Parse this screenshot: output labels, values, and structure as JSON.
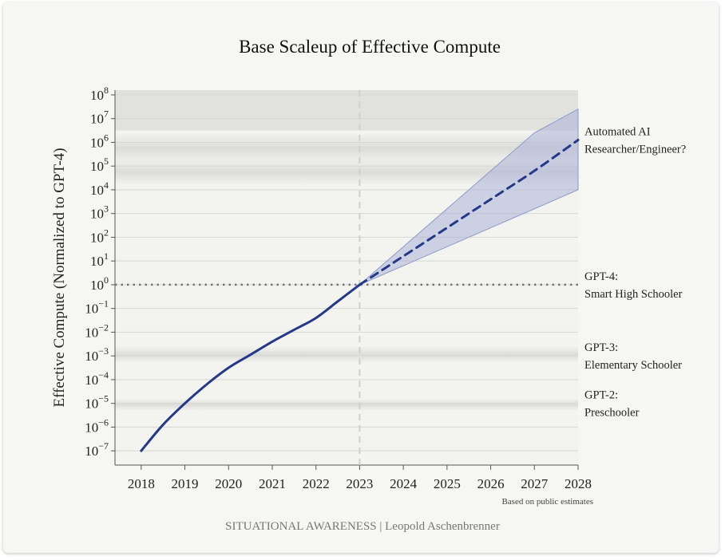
{
  "chart_data": {
    "type": "line",
    "title": "Base Scaleup of Effective Compute",
    "ylabel": "Effective Compute (Normalized to GPT-4)",
    "xlabel": "",
    "xlim": [
      2017.4,
      2028
    ],
    "ylim_log10": [
      -7.6,
      8.2
    ],
    "x_ticks": [
      2018,
      2019,
      2020,
      2021,
      2022,
      2023,
      2024,
      2025,
      2026,
      2027,
      2028
    ],
    "y_tick_exponents": [
      -7,
      -6,
      -5,
      -4,
      -3,
      -2,
      -1,
      0,
      1,
      2,
      3,
      4,
      5,
      6,
      7,
      8
    ],
    "series": [
      {
        "name": "historical",
        "style": "solid",
        "x": [
          2018,
          2018.5,
          2019,
          2019.5,
          2020,
          2020.5,
          2021,
          2021.5,
          2022,
          2022.5,
          2023
        ],
        "log10_y": [
          -7.0,
          -5.9,
          -5.0,
          -4.2,
          -3.5,
          -2.95,
          -2.4,
          -1.9,
          -1.4,
          -0.7,
          0.0
        ]
      },
      {
        "name": "projection",
        "style": "dashed",
        "x": [
          2023,
          2024,
          2025,
          2026,
          2027,
          2028
        ],
        "log10_y": [
          0.0,
          1.2,
          2.4,
          3.6,
          4.8,
          6.1
        ]
      }
    ],
    "band": {
      "x": [
        2023,
        2024,
        2025,
        2026,
        2027,
        2028
      ],
      "log10_low": [
        0.0,
        0.8,
        1.6,
        2.4,
        3.2,
        4.0
      ],
      "log10_high": [
        0.0,
        1.6,
        3.2,
        4.8,
        6.4,
        7.4
      ]
    },
    "vertical_marker_x": 2023,
    "horizontal_marker_log10_y": 0,
    "shaded_bands_log10": [
      [
        5.1,
        6.4
      ],
      [
        4.2,
        5.3
      ],
      [
        -3.3,
        -2.6
      ],
      [
        -5.3,
        -4.8
      ]
    ],
    "annotations": [
      {
        "lines": [
          "Automated AI",
          "Researcher/Engineer?"
        ],
        "log10_y": 6.1
      },
      {
        "lines": [
          "GPT-4:",
          "Smart High Schooler"
        ],
        "log10_y": 0
      },
      {
        "lines": [
          "GPT-3:",
          "Elementary Schooler"
        ],
        "log10_y": -3
      },
      {
        "lines": [
          "GPT-2:",
          "Preschooler"
        ],
        "log10_y": -5
      }
    ],
    "footnote": "Based on public estimates",
    "colors": {
      "line": "#25398a",
      "band": "#a9b2d7",
      "grid": "#d6d6d3"
    }
  },
  "credit": "SITUATIONAL AWARENESS | Leopold Aschenbrenner"
}
